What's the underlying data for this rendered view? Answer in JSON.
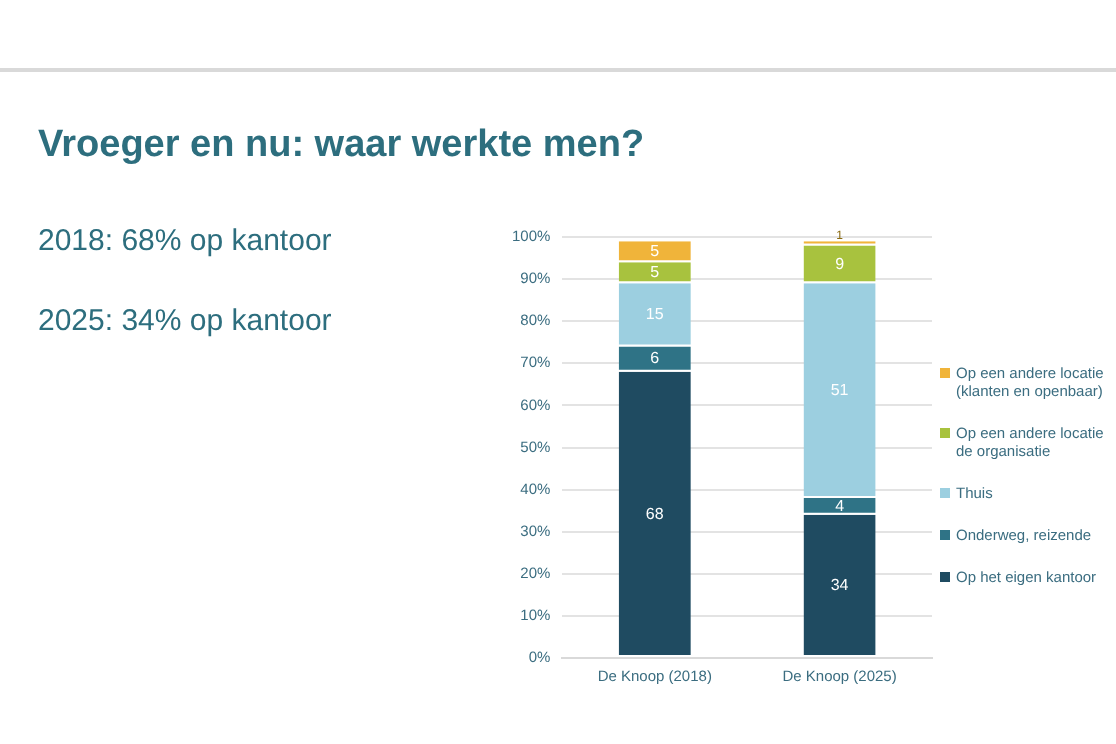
{
  "chart_data": {
    "type": "bar",
    "stacked": true,
    "title": "Vroeger en nu: waar werkte men?",
    "annotations": [
      "2018: 68% op kantoor",
      "2025: 34% op kantoor"
    ],
    "categories": [
      "De Knoop (2018)",
      "De Knoop (2025)"
    ],
    "series": [
      {
        "name": "Op het eigen kantoor",
        "color": "#1f4b61",
        "values": [
          68,
          34
        ]
      },
      {
        "name": "Onderweg, reizende",
        "color": "#2f7386",
        "values": [
          6,
          4
        ]
      },
      {
        "name": "Thuis",
        "color": "#9ccfe0",
        "values": [
          15,
          51
        ]
      },
      {
        "name": "Op een andere locatie de organisatie",
        "color": "#a8c23e",
        "values": [
          5,
          9
        ]
      },
      {
        "name": "Op een andere locatie (klanten en openbaar)",
        "color": "#f0b43a",
        "values": [
          5,
          1
        ]
      }
    ],
    "ylim": [
      0,
      100
    ],
    "yticks": [
      {
        "value": 0,
        "label": "0%"
      },
      {
        "value": 10,
        "label": "10%"
      },
      {
        "value": 20,
        "label": "20%"
      },
      {
        "value": 30,
        "label": "30%"
      },
      {
        "value": 40,
        "label": "40%"
      },
      {
        "value": 50,
        "label": "50%"
      },
      {
        "value": 60,
        "label": "60%"
      },
      {
        "value": 70,
        "label": "70%"
      },
      {
        "value": 80,
        "label": "80%"
      },
      {
        "value": 90,
        "label": "90%"
      },
      {
        "value": 100,
        "label": "100%"
      }
    ],
    "grid": "y",
    "legend": "right",
    "data_labels": true
  }
}
